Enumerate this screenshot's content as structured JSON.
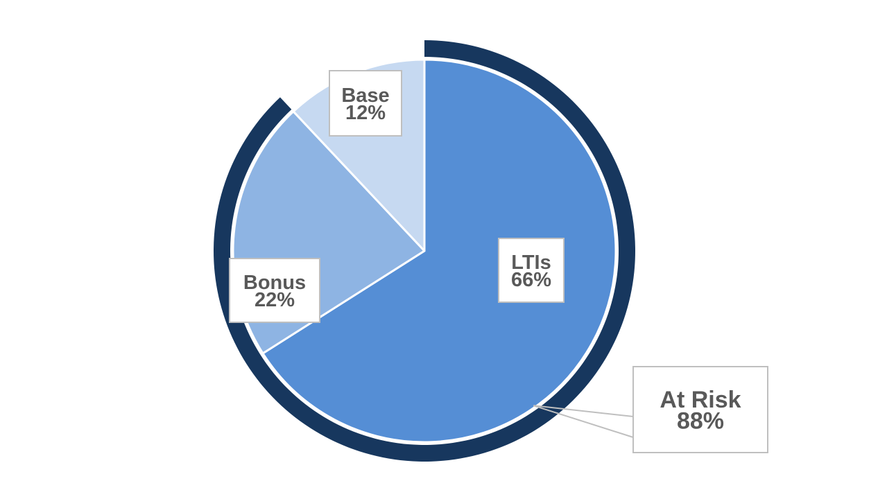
{
  "chart_data": {
    "type": "pie",
    "slices": [
      {
        "label": "LTIs",
        "value": 66,
        "value_label": "66%",
        "color": "#558ed5"
      },
      {
        "label": "Bonus",
        "value": 22,
        "value_label": "22%",
        "color": "#8eb4e3"
      },
      {
        "label": "Base",
        "value": 12,
        "value_label": "12%",
        "color": "#c6d9f1"
      }
    ],
    "outer_ring": {
      "label": "At Risk",
      "value": 88,
      "value_label": "88%",
      "covers": [
        "LTIs",
        "Bonus"
      ],
      "color": "#17375e"
    },
    "slice_border_color": "#ffffff",
    "label_box_border_color": "#bfbfbf",
    "label_text_color": "#595959"
  }
}
